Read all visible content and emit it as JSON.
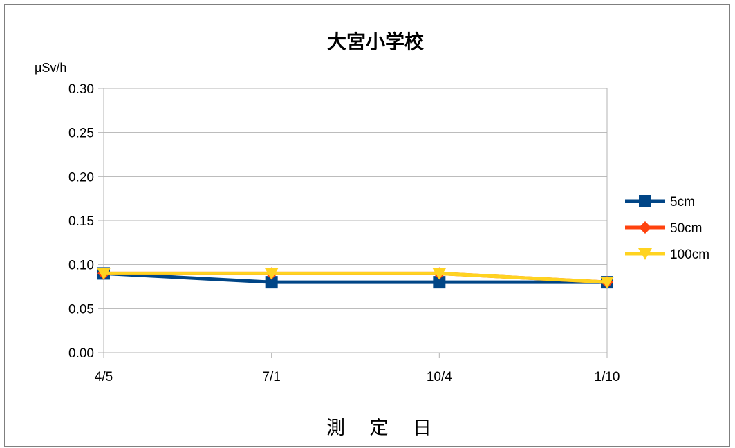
{
  "chart_data": {
    "type": "line",
    "title": "大宮小学校",
    "ylabel": "μSv/h",
    "xlabel": "測 定 日",
    "categories": [
      "4/5",
      "7/1",
      "10/4",
      "1/10"
    ],
    "ylim": [
      0,
      0.3
    ],
    "yticks": [
      "0.00",
      "0.05",
      "0.10",
      "0.15",
      "0.20",
      "0.25",
      "0.30"
    ],
    "grid": true,
    "legend_position": "right",
    "series": [
      {
        "name": "5cm",
        "values": [
          0.09,
          0.08,
          0.08,
          0.08
        ],
        "color": "#004586",
        "marker": "square"
      },
      {
        "name": "50cm",
        "values": [
          0.09,
          0.09,
          0.09,
          0.08
        ],
        "color": "#ff420e",
        "marker": "diamond"
      },
      {
        "name": "100cm",
        "values": [
          0.09,
          0.09,
          0.09,
          0.08
        ],
        "color": "#ffd320",
        "marker": "triangle-down"
      }
    ]
  }
}
